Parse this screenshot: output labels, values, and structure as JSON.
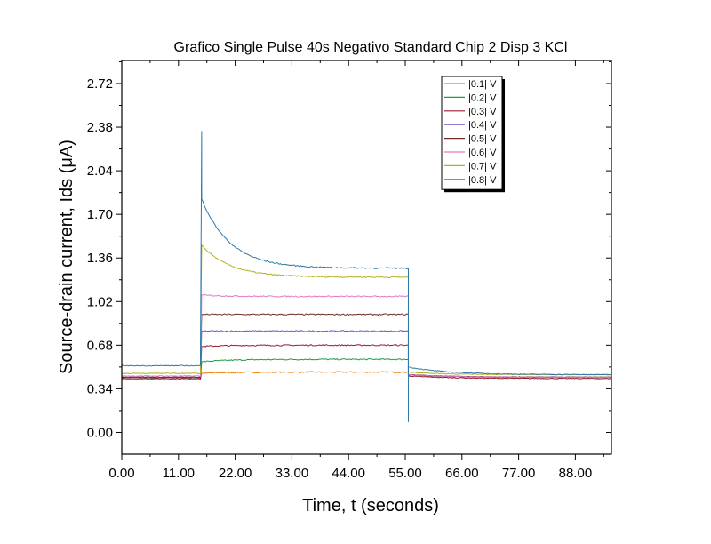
{
  "chart_data": {
    "type": "line",
    "title": "Grafico Single Pulse 40s Negativo Standard Chip 2 Disp 3 KCl",
    "xlabel": "Time, t (seconds)",
    "ylabel": "Source-drain current, Ids (μA)",
    "xlim": [
      0,
      95
    ],
    "ylim": [
      -0.17,
      2.9
    ],
    "x_ticks": [
      "0.00",
      "11.00",
      "22.00",
      "33.00",
      "44.00",
      "55.00",
      "66.00",
      "77.00",
      "88.00"
    ],
    "x_tick_values": [
      0,
      11,
      22,
      33,
      44,
      55,
      66,
      77,
      88
    ],
    "y_ticks": [
      "0.00",
      "0.34",
      "0.68",
      "1.02",
      "1.36",
      "1.70",
      "2.04",
      "2.38",
      "2.72"
    ],
    "y_tick_values": [
      0,
      0.34,
      0.68,
      1.02,
      1.36,
      1.7,
      2.04,
      2.38,
      2.72
    ],
    "legend_position": "top-right",
    "pulse_on": 15.5,
    "pulse_off": 55.6,
    "series": [
      {
        "name": "|0.1| V",
        "color": "#f07f0a",
        "base": 0.41,
        "pulse_start": 0.46,
        "pulse_end": 0.47,
        "post": 0.43
      },
      {
        "name": "|0.2| V",
        "color": "#1f9e3b",
        "base": 0.42,
        "pulse_start": 0.55,
        "pulse_end": 0.57,
        "post": 0.43
      },
      {
        "name": "|0.3| V",
        "color": "#9a1b31",
        "base": 0.42,
        "pulse_start": 0.67,
        "pulse_end": 0.68,
        "post": 0.42
      },
      {
        "name": "|0.4| V",
        "color": "#7d4cc0",
        "base": 0.43,
        "pulse_start": 0.79,
        "pulse_end": 0.79,
        "post": 0.43
      },
      {
        "name": "|0.5| V",
        "color": "#6b2e26",
        "base": 0.43,
        "pulse_start": 0.92,
        "pulse_end": 0.92,
        "post": 0.43
      },
      {
        "name": "|0.6| V",
        "color": "#e277c3",
        "base": 0.44,
        "pulse_start": 1.07,
        "pulse_end": 1.06,
        "post": 0.43
      },
      {
        "name": "|0.7| V",
        "color": "#b5b01f",
        "base": 0.46,
        "pulse_start": 1.46,
        "pulse_end": 1.21,
        "post": 0.45
      },
      {
        "name": "|0.8| V",
        "color": "#2c78ab",
        "base": 0.52,
        "pulse_start": 1.82,
        "pulse_end": 1.28,
        "post": 0.45,
        "spike_peak": 2.35,
        "drop_min": 0.08
      }
    ]
  }
}
